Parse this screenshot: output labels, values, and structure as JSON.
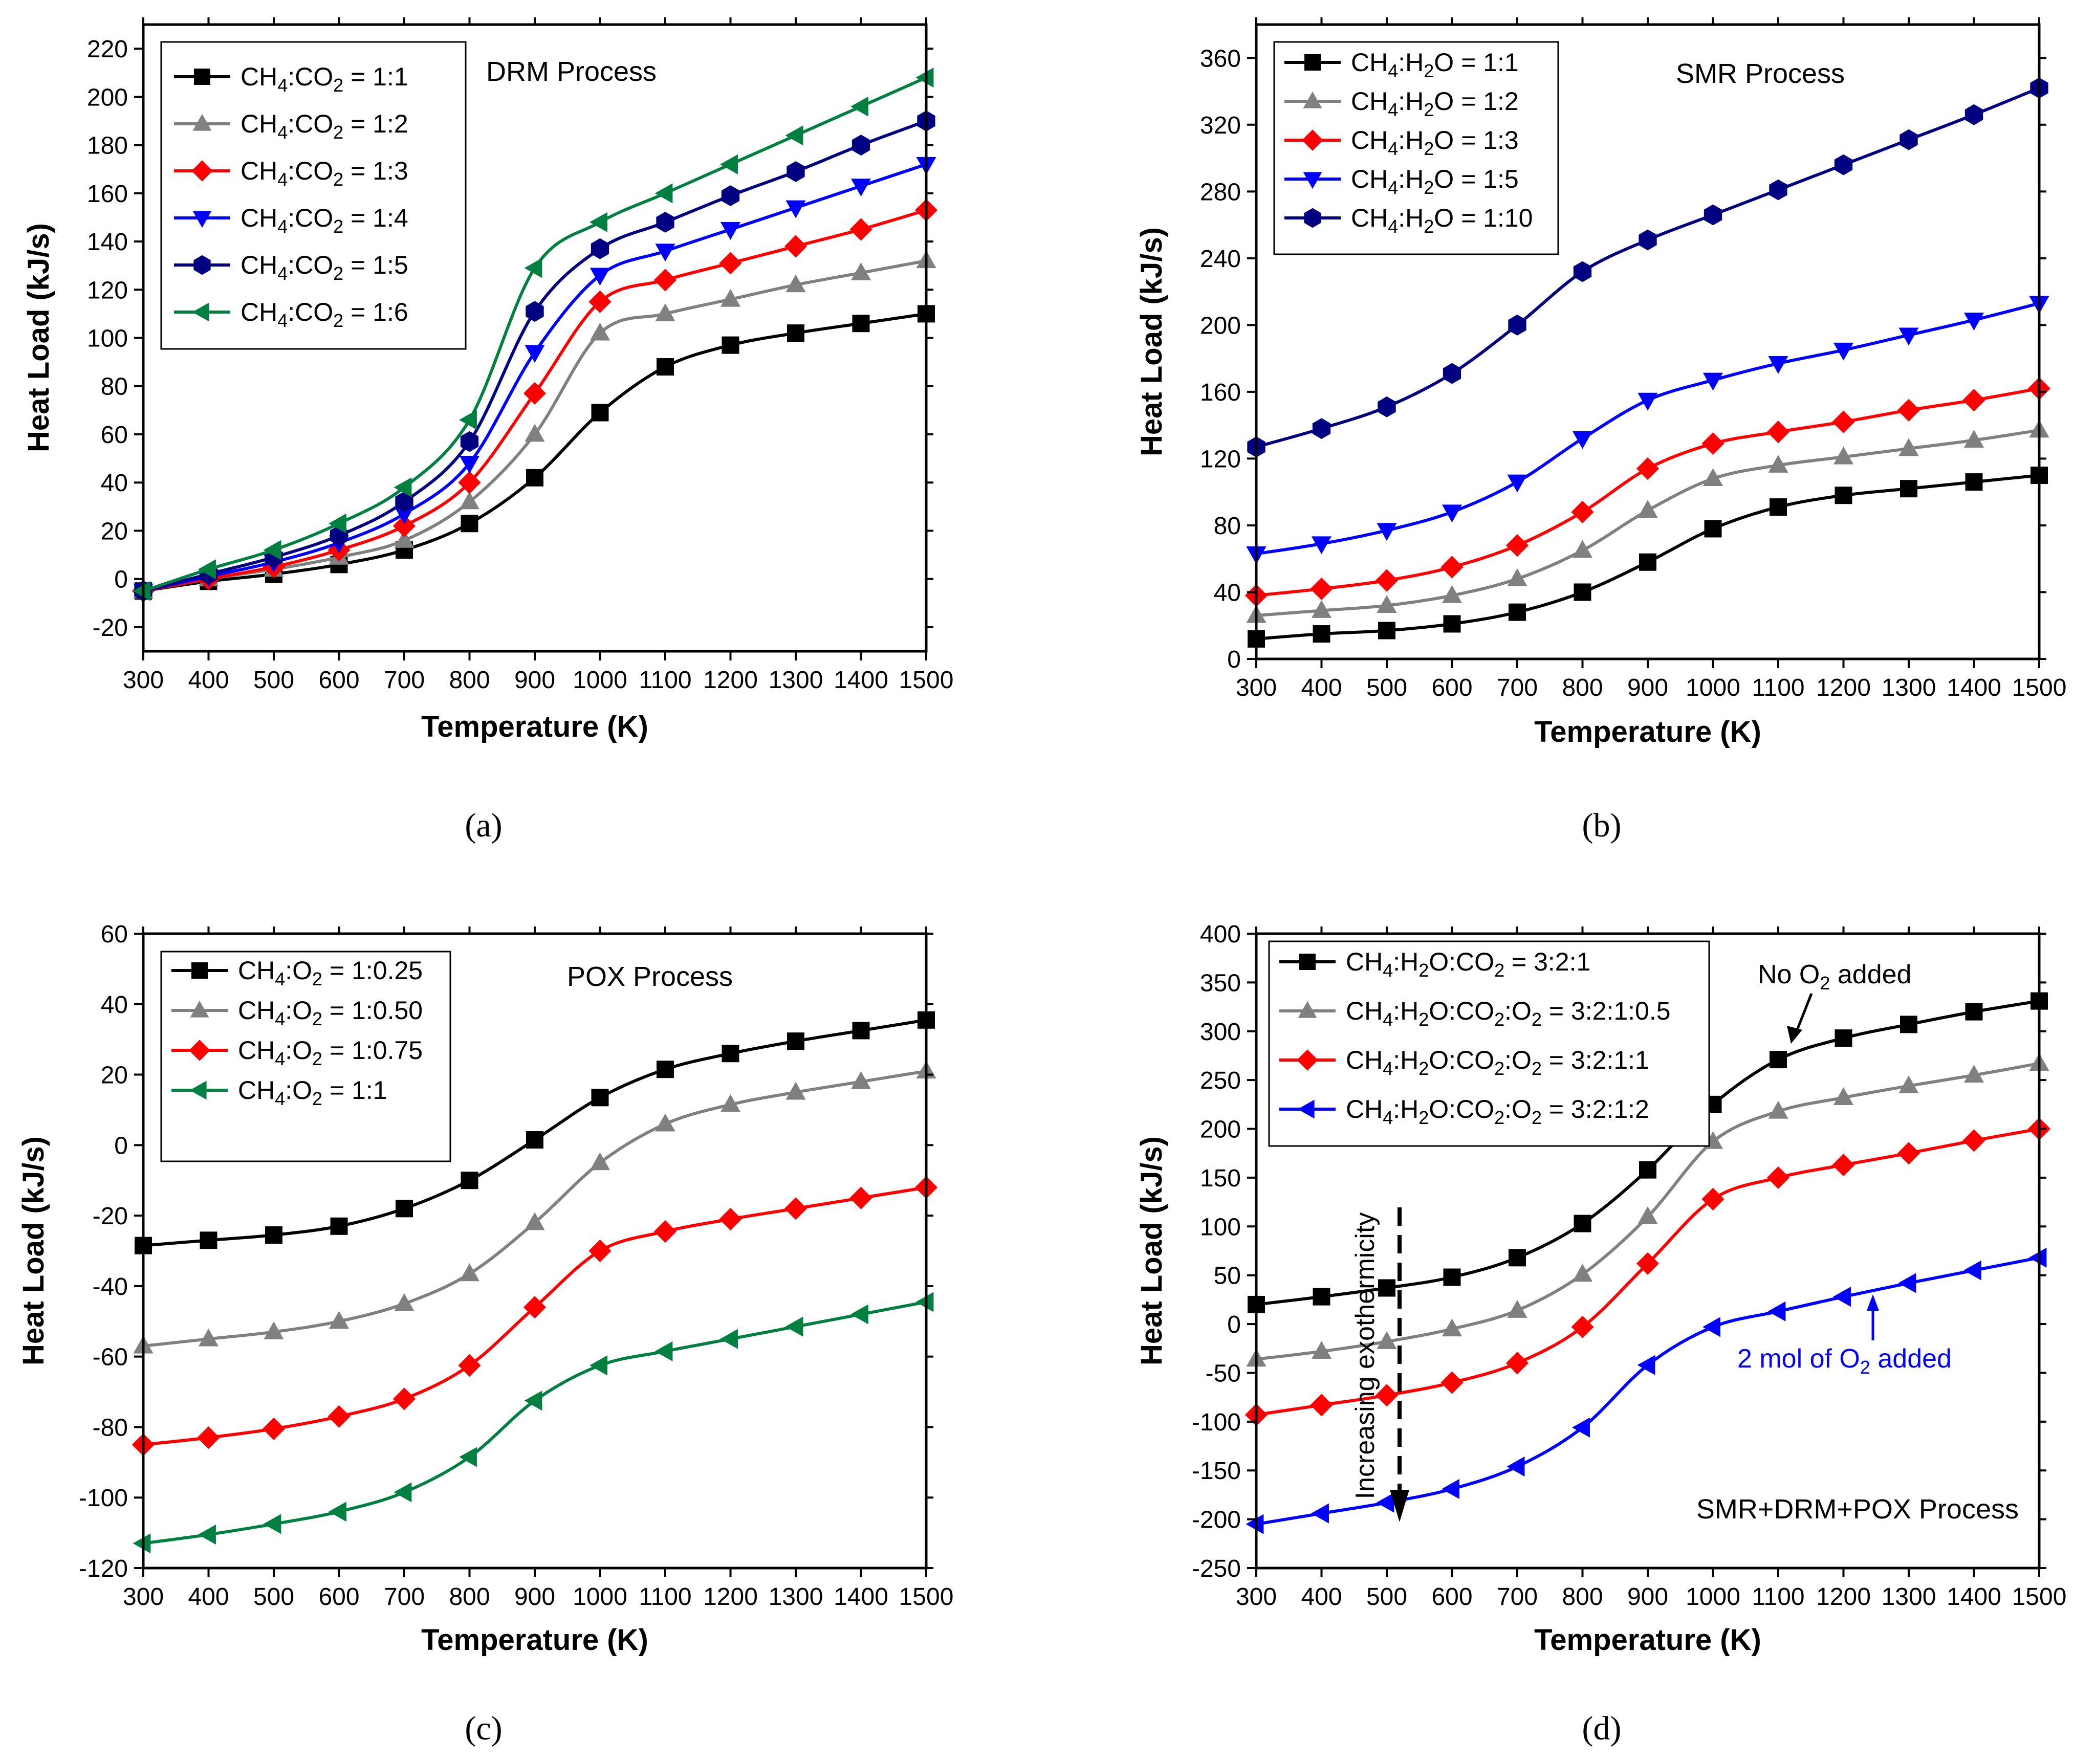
{
  "figure": {
    "panels": [
      {
        "label": "(a)",
        "process_label": "DRM Process"
      },
      {
        "label": "(b)",
        "process_label": "SMR Process"
      },
      {
        "label": "(c)",
        "process_label": "POX Process"
      },
      {
        "label": "(d)",
        "process_label": "SMR+DRM+POX Process"
      }
    ]
  },
  "chart_data": [
    {
      "type": "line",
      "title": "DRM Process",
      "xlabel": "Temperature (K)",
      "ylabel": "Heat Load (kJ/s)",
      "xlim": [
        300,
        1500
      ],
      "ylim": [
        -30,
        230
      ],
      "xticks": [
        300,
        400,
        500,
        600,
        700,
        800,
        900,
        1000,
        1100,
        1200,
        1300,
        1400,
        1500
      ],
      "yticks": [
        -20,
        0,
        20,
        40,
        60,
        80,
        100,
        120,
        140,
        160,
        180,
        200,
        220
      ],
      "legend_position": "top-left",
      "x": [
        300,
        400,
        500,
        600,
        700,
        800,
        900,
        1000,
        1100,
        1200,
        1300,
        1400,
        1500
      ],
      "series": [
        {
          "name": "CH4:CO2 = 1:1",
          "label_parts": [
            "CH",
            "4",
            ":CO",
            "2",
            " = 1:1"
          ],
          "color": "#000000",
          "marker": "square",
          "values": [
            -5,
            -1,
            2,
            6,
            12,
            23,
            42,
            69,
            88,
            97,
            102,
            106,
            110
          ]
        },
        {
          "name": "CH4:CO2 = 1:2",
          "label_parts": [
            "CH",
            "4",
            ":CO",
            "2",
            " = 1:2"
          ],
          "color": "#808080",
          "marker": "triangle-up",
          "values": [
            -5,
            0,
            4,
            9,
            16,
            32,
            60,
            102,
            110,
            116,
            122,
            127,
            132
          ]
        },
        {
          "name": "CH4:CO2 = 1:3",
          "label_parts": [
            "CH",
            "4",
            ":CO",
            "2",
            " = 1:3"
          ],
          "color": "#ff0000",
          "marker": "diamond",
          "values": [
            -5,
            0,
            5,
            12,
            22,
            40,
            77,
            115,
            124,
            131,
            138,
            145,
            153
          ]
        },
        {
          "name": "CH4:CO2 = 1:4",
          "label_parts": [
            "CH",
            "4",
            ":CO",
            "2",
            " = 1:4"
          ],
          "color": "#0000ff",
          "marker": "triangle-down",
          "values": [
            -5,
            1,
            7,
            15,
            27,
            48,
            94,
            126,
            136,
            145,
            154,
            163,
            172
          ]
        },
        {
          "name": "CH4:CO2 = 1:5",
          "label_parts": [
            "CH",
            "4",
            ":CO",
            "2",
            " = 1:5"
          ],
          "color": "#000080",
          "marker": "hexagon",
          "values": [
            -5,
            2,
            9,
            18,
            32,
            57,
            111,
            137,
            148,
            159,
            169,
            180,
            190
          ]
        },
        {
          "name": "CH4:CO2 = 1:6",
          "label_parts": [
            "CH",
            "4",
            ":CO",
            "2",
            " = 1:6"
          ],
          "color": "#008040",
          "marker": "triangle-left",
          "values": [
            -5,
            4,
            12,
            23,
            38,
            66,
            129,
            148,
            160,
            172,
            184,
            196,
            208
          ]
        }
      ]
    },
    {
      "type": "line",
      "title": "SMR Process",
      "xlabel": "Temperature (K)",
      "ylabel": "Heat Load (kJ/s)",
      "xlim": [
        300,
        1500
      ],
      "ylim": [
        0,
        380
      ],
      "xticks": [
        300,
        400,
        500,
        600,
        700,
        800,
        900,
        1000,
        1100,
        1200,
        1300,
        1400,
        1500
      ],
      "yticks": [
        0,
        40,
        80,
        120,
        160,
        200,
        240,
        280,
        320,
        360
      ],
      "legend_position": "top-left",
      "x": [
        300,
        400,
        500,
        600,
        700,
        800,
        900,
        1000,
        1100,
        1200,
        1300,
        1400,
        1500
      ],
      "series": [
        {
          "name": "CH4:H2O = 1:1",
          "label_parts": [
            "CH",
            "4",
            ":H",
            "2",
            "O = 1:1"
          ],
          "color": "#000000",
          "marker": "square",
          "values": [
            12,
            15,
            17,
            21,
            28,
            40,
            58,
            78,
            91,
            98,
            102,
            106,
            110
          ]
        },
        {
          "name": "CH4:H2O = 1:2",
          "label_parts": [
            "CH",
            "4",
            ":H",
            "2",
            "O = 1:2"
          ],
          "color": "#808080",
          "marker": "triangle-up",
          "values": [
            26,
            29,
            32,
            38,
            48,
            65,
            89,
            108,
            116,
            121,
            126,
            131,
            137
          ]
        },
        {
          "name": "CH4:H2O = 1:3",
          "label_parts": [
            "CH",
            "4",
            ":H",
            "2",
            "O = 1:3"
          ],
          "color": "#ff0000",
          "marker": "diamond",
          "values": [
            38,
            42,
            47,
            55,
            68,
            88,
            114,
            129,
            136,
            142,
            149,
            155,
            162
          ]
        },
        {
          "name": "CH4:H2O = 1:5",
          "label_parts": [
            "CH",
            "4",
            ":H",
            "2",
            "O = 1:5"
          ],
          "color": "#0000ff",
          "marker": "triangle-down",
          "values": [
            63,
            69,
            77,
            88,
            106,
            132,
            155,
            167,
            177,
            185,
            194,
            203,
            213
          ]
        },
        {
          "name": "CH4:H2O = 1:10",
          "label_parts": [
            "CH",
            "4",
            ":H",
            "2",
            "O = 1:10"
          ],
          "color": "#000080",
          "marker": "hexagon",
          "values": [
            127,
            138,
            151,
            171,
            200,
            232,
            251,
            266,
            281,
            296,
            311,
            326,
            342
          ]
        }
      ]
    },
    {
      "type": "line",
      "title": "POX Process",
      "xlabel": "Temperature (K)",
      "ylabel": "Heat Load (kJ/s)",
      "xlim": [
        300,
        1500
      ],
      "ylim": [
        -120,
        60
      ],
      "xticks": [
        300,
        400,
        500,
        600,
        700,
        800,
        900,
        1000,
        1100,
        1200,
        1300,
        1400,
        1500
      ],
      "yticks": [
        -120,
        -100,
        -80,
        -60,
        -40,
        -20,
        0,
        20,
        40,
        60
      ],
      "legend_position": "top-left",
      "x": [
        300,
        400,
        500,
        600,
        700,
        800,
        900,
        1000,
        1100,
        1200,
        1300,
        1400,
        1500
      ],
      "series": [
        {
          "name": "CH4:O2 = 1:0.25",
          "label_parts": [
            "CH",
            "4",
            ":O",
            "2",
            " = 1:0.25"
          ],
          "color": "#000000",
          "marker": "square",
          "values": [
            -28.5,
            -27,
            -25.5,
            -23,
            -18,
            -10,
            1.5,
            13.5,
            21.5,
            26,
            29.5,
            32.5,
            35.5
          ]
        },
        {
          "name": "CH4:O2 = 1:0.50",
          "label_parts": [
            "CH",
            "4",
            ":O",
            "2",
            " = 1:0.50"
          ],
          "color": "#808080",
          "marker": "triangle-up",
          "values": [
            -57,
            -55,
            -53,
            -50,
            -45,
            -36.5,
            -22,
            -5,
            6,
            11.5,
            15,
            18,
            21
          ]
        },
        {
          "name": "CH4:O2 = 1:0.75",
          "label_parts": [
            "CH",
            "4",
            ":O",
            "2",
            " = 1:0.75"
          ],
          "color": "#ff0000",
          "marker": "diamond",
          "values": [
            -85,
            -83,
            -80.5,
            -77,
            -72,
            -62.5,
            -46,
            -30,
            -24.5,
            -21,
            -18,
            -15,
            -12
          ]
        },
        {
          "name": "CH4:O2 = 1:1",
          "label_parts": [
            "CH",
            "4",
            ":O",
            "2",
            " = 1:1"
          ],
          "color": "#008040",
          "marker": "triangle-left",
          "values": [
            -113,
            -110.5,
            -107.5,
            -104,
            -98.5,
            -88.5,
            -72.5,
            -62.5,
            -58.5,
            -55,
            -51.5,
            -48,
            -44.5
          ]
        }
      ]
    },
    {
      "type": "line",
      "title": "SMR+DRM+POX Process",
      "xlabel": "Temperature (K)",
      "ylabel": "Heat Load (kJ/s)",
      "xlim": [
        300,
        1500
      ],
      "ylim": [
        -250,
        400
      ],
      "xticks": [
        300,
        400,
        500,
        600,
        700,
        800,
        900,
        1000,
        1100,
        1200,
        1300,
        1400,
        1500
      ],
      "yticks": [
        -250,
        -200,
        -150,
        -100,
        -50,
        0,
        50,
        100,
        150,
        200,
        250,
        300,
        350,
        400
      ],
      "legend_position": "top-left",
      "x": [
        300,
        400,
        500,
        600,
        700,
        800,
        900,
        1000,
        1100,
        1200,
        1300,
        1400,
        1500
      ],
      "series": [
        {
          "name": "CH4:H2O:CO2 = 3:2:1",
          "label_parts": [
            "CH",
            "4",
            ":H",
            "2",
            "O:CO",
            "2",
            " = 3:2:1"
          ],
          "color": "#000000",
          "marker": "square",
          "values": [
            20,
            28,
            37,
            48,
            68,
            103,
            158,
            225,
            271,
            293,
            307,
            320,
            331
          ]
        },
        {
          "name": "CH4:H2O:CO2:O2 = 3:2:1:0.5",
          "label_parts": [
            "CH",
            "4",
            ":H",
            "2",
            "O:CO",
            "2",
            ":O",
            "2",
            " = 3:2:1:0.5"
          ],
          "color": "#808080",
          "marker": "triangle-up",
          "values": [
            -36,
            -28,
            -18,
            -5,
            14,
            51,
            110,
            187,
            218,
            232,
            244,
            255,
            267
          ]
        },
        {
          "name": "CH4:H2O:CO2:O2 = 3:2:1:1",
          "label_parts": [
            "CH",
            "4",
            ":H",
            "2",
            "O:CO",
            "2",
            ":O",
            "2",
            " = 3:2:1:1"
          ],
          "color": "#ff0000",
          "marker": "diamond",
          "values": [
            -93,
            -83,
            -73,
            -60,
            -40,
            -3,
            62,
            128,
            150,
            163,
            175,
            188,
            200
          ]
        },
        {
          "name": "CH4:H2O:CO2:O2 = 3:2:1:2",
          "label_parts": [
            "CH",
            "4",
            ":H",
            "2",
            "O:CO",
            "2",
            ":O",
            "2",
            " = 3:2:1:2"
          ],
          "color": "#0000ff",
          "marker": "triangle-left",
          "values": [
            -205,
            -194,
            -183,
            -169,
            -146,
            -106,
            -42,
            -3,
            13,
            28,
            42,
            55,
            68
          ]
        }
      ],
      "annotations": [
        {
          "id": "no-o2",
          "text_parts": [
            "No O",
            "2",
            " added"
          ],
          "color": "#000000"
        },
        {
          "id": "two-mol-o2",
          "text_parts": [
            "2 mol of O",
            "2",
            " added"
          ],
          "color": "#0000ff"
        },
        {
          "id": "exothermicity",
          "text": "Increasing exothermicity",
          "color": "#000000"
        }
      ]
    }
  ]
}
